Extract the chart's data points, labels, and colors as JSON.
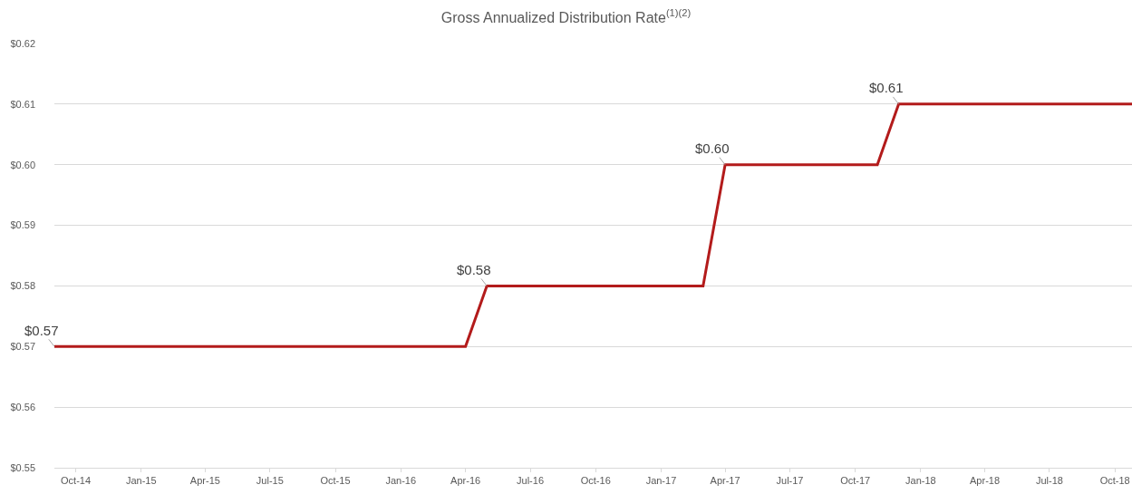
{
  "chart_data": {
    "type": "line",
    "title": "Gross Annualized Distribution Rate$^{(1)(2)}$",
    "x": [
      "2014-09-01",
      "2016-04-01",
      "2016-05-01",
      "2017-03-01",
      "2017-04-01",
      "2017-11-01",
      "2017-12-01",
      "2018-10-25"
    ],
    "series": [
      {
        "color": "#b31b1b",
        "values": [
          0.57,
          0.57,
          0.58,
          0.58,
          0.6,
          0.6,
          0.61,
          0.61
        ]
      }
    ],
    "xlim": [
      "2014-09-01",
      "2018-10-25"
    ],
    "xticks": [
      {
        "value": "2014-10-01",
        "label": "Oct-14"
      },
      {
        "value": "2015-01-01",
        "label": "Jan-15"
      },
      {
        "value": "2015-04-01",
        "label": "Apr-15"
      },
      {
        "value": "2015-07-01",
        "label": "Jul-15"
      },
      {
        "value": "2015-10-01",
        "label": "Oct-15"
      },
      {
        "value": "2016-01-01",
        "label": "Jan-16"
      },
      {
        "value": "2016-04-01",
        "label": "Apr-16"
      },
      {
        "value": "2016-07-01",
        "label": "Jul-16"
      },
      {
        "value": "2016-10-01",
        "label": "Oct-16"
      },
      {
        "value": "2017-01-01",
        "label": "Jan-17"
      },
      {
        "value": "2017-04-01",
        "label": "Apr-17"
      },
      {
        "value": "2017-07-01",
        "label": "Jul-17"
      },
      {
        "value": "2017-10-01",
        "label": "Oct-17"
      },
      {
        "value": "2018-01-01",
        "label": "Jan-18"
      },
      {
        "value": "2018-04-01",
        "label": "Apr-18"
      },
      {
        "value": "2018-07-01",
        "label": "Jul-18"
      },
      {
        "value": "2018-10-01",
        "label": "Oct-18"
      }
    ],
    "ylim": [
      0.55,
      0.62
    ],
    "yticks": [
      {
        "value": 0.55,
        "label": "$0.55"
      },
      {
        "value": 0.56,
        "label": "$0.56"
      },
      {
        "value": 0.57,
        "label": "$0.57"
      },
      {
        "value": 0.58,
        "label": "$0.58"
      },
      {
        "value": 0.59,
        "label": "$0.59"
      },
      {
        "value": 0.6,
        "label": "$0.60"
      },
      {
        "value": 0.61,
        "label": "$0.61"
      },
      {
        "value": 0.62,
        "label": "$0.62"
      }
    ],
    "annotations": [
      {
        "text": "$0.57",
        "x": "2014-09-01",
        "y": 0.57
      },
      {
        "text": "$0.58",
        "x": "2016-05-01",
        "y": 0.58
      },
      {
        "text": "$0.60",
        "x": "2017-04-01",
        "y": 0.6
      },
      {
        "text": "$0.61",
        "x": "2017-12-01",
        "y": 0.61
      }
    ],
    "grid": "y",
    "marker": "none",
    "line_style": "solid"
  }
}
